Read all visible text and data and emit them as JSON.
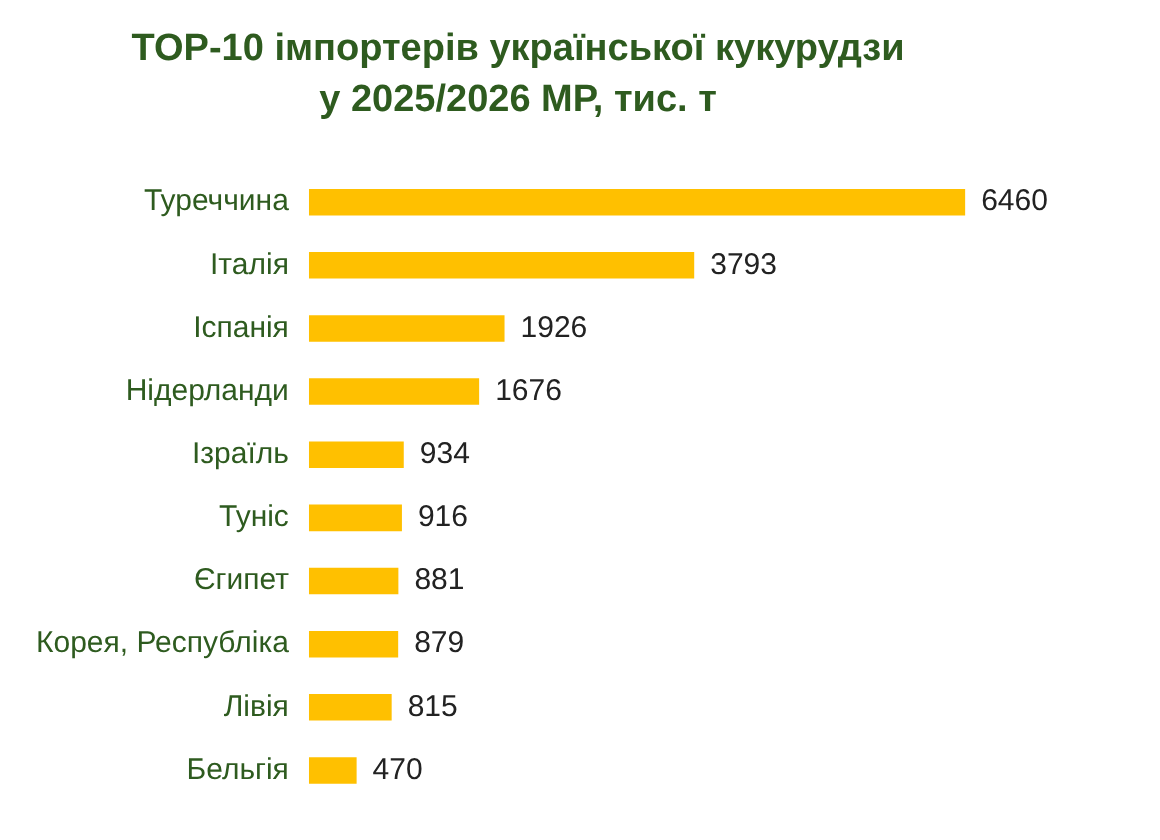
{
  "chart_data": {
    "type": "bar",
    "orientation": "horizontal",
    "title": "TOP-10 імпортерів української кукурудзи\nу 2025/2026 МР, тис. т",
    "categories": [
      "Туреччина",
      "Італія",
      "Іспанія",
      "Нідерланди",
      "Ізраїль",
      "Туніс",
      "Єгипет",
      "Корея, Республіка",
      "Лівія",
      "Бельгія"
    ],
    "values": [
      6460,
      3793,
      1926,
      1676,
      934,
      916,
      881,
      879,
      815,
      470
    ],
    "color": "#ffc000",
    "data_labels": true
  }
}
